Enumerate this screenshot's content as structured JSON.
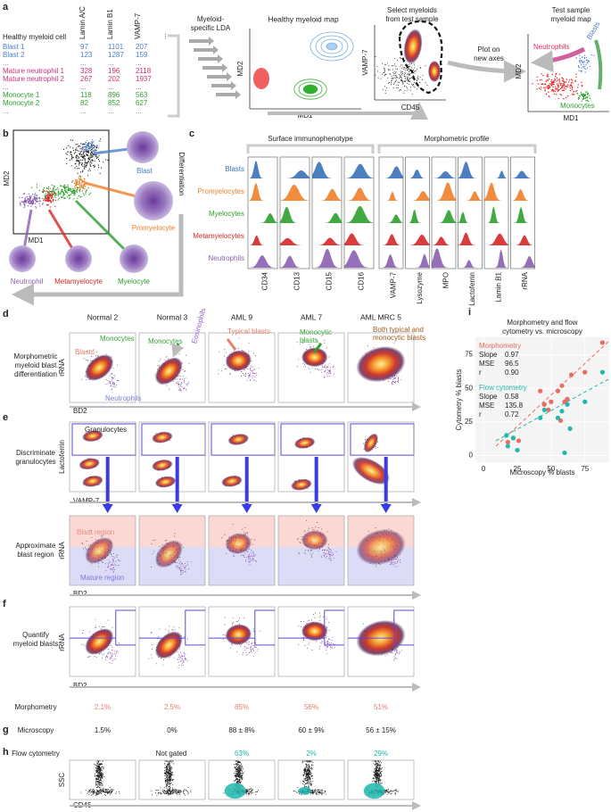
{
  "figure": {
    "a": {
      "label": "a",
      "header": "Healthy myeloid cell",
      "columns": [
        "Lamin A/C",
        "Lamin B1",
        "VAMP-7",
        "..."
      ],
      "rows": [
        {
          "cells": [
            "Blast 1",
            "97",
            "1101",
            "207"
          ],
          "color": "#4a80c8"
        },
        {
          "cells": [
            "Blast 2",
            "123",
            "1287",
            "159"
          ],
          "color": "#4a80c8"
        },
        {
          "cells": [
            "...",
            "...",
            "...",
            "..."
          ],
          "color": "#4a80c8"
        },
        {
          "cells": [
            "Mature neutrophil 1",
            "328",
            "196",
            "2118"
          ],
          "color": "#d0307a"
        },
        {
          "cells": [
            "Mature neutrophil 2",
            "267",
            "202",
            "1937"
          ],
          "color": "#d0307a"
        },
        {
          "cells": [
            "...",
            "...",
            "...",
            "..."
          ],
          "color": "#d0307a"
        },
        {
          "cells": [
            "Monocyte 1",
            "118",
            "896",
            "563"
          ],
          "color": "#2ea02e"
        },
        {
          "cells": [
            "Monocyte 2",
            "82",
            "852",
            "627"
          ],
          "color": "#2ea02e"
        },
        {
          "cells": [
            "...",
            "...",
            "...",
            "..."
          ],
          "color": "#2ea02e"
        }
      ],
      "lda": [
        "Myeloid-",
        "specific LDA"
      ],
      "healthy_title": "Healthy myeloid map",
      "healthy_y": "MD2",
      "healthy_x": "MD1",
      "select_title": [
        "Select myeloids",
        "from test sample"
      ],
      "select_y": "VAMP-7",
      "select_x": "CD45",
      "plot_new": [
        "Plot on",
        "new axes"
      ],
      "test_title": [
        "Test sample",
        "myeloid map"
      ],
      "test_y": "MD2",
      "test_x": "MD1",
      "neutrophils": "Neutrophils",
      "blasts": "Blasts",
      "monocytes": "Monocytes"
    },
    "b": {
      "label": "b",
      "y": "MD2",
      "x": "MD1",
      "axis": "Differentiation",
      "cells": [
        {
          "name": "Blast",
          "color": "#4a80c8"
        },
        {
          "name": "Promyelocyte",
          "color": "#f07f2a"
        },
        {
          "name": "Neutrophil",
          "color": "#8a5fb0"
        },
        {
          "name": "Metamyelocyte",
          "color": "#d62728"
        },
        {
          "name": "Myelocyte",
          "color": "#2ea02e"
        }
      ]
    },
    "c": {
      "label": "c",
      "groups": [
        "Surface immunophenotype",
        "Morphometric profile"
      ],
      "rows": [
        {
          "name": "Blasts",
          "color": "#3a70b8"
        },
        {
          "name": "Promyelocytes",
          "color": "#f07f2a"
        },
        {
          "name": "Myelocytes",
          "color": "#2ea02e"
        },
        {
          "name": "Metamyelocytes",
          "color": "#d62728"
        },
        {
          "name": "Neutrophils",
          "color": "#8a5fb0"
        }
      ],
      "columns": [
        "CD34",
        "CD13",
        "CD15",
        "CD16",
        "VAMP-7",
        "Lysozyme",
        "MPO",
        "Lactoferrin",
        "Lamin B1",
        "rRNA"
      ]
    },
    "samples": [
      "Normal 2",
      "Normal 3",
      "AML 9",
      "AML 7",
      "AML MRC 5"
    ],
    "d": {
      "label": "d",
      "row": [
        "Morphometric",
        "myeloid blast",
        "differentiation"
      ],
      "y": "rRNA",
      "x": "BD2",
      "annotations": [
        {
          "text": [
            "Blasts"
          ],
          "color": "#e8806a"
        },
        {
          "text": [
            "Monocytes"
          ],
          "color": "#3aa43a"
        },
        {
          "text": [
            "Neutrophils"
          ],
          "color": "#7a7ad8"
        },
        {
          "text": [
            "Monocytes"
          ],
          "color": "#3aa43a"
        },
        {
          "text": [
            "Eosinophils"
          ],
          "color": "#9b5fd8"
        },
        {
          "text": [
            "Typical blasts"
          ],
          "color": "#e8806a"
        },
        {
          "text": [
            "Monocytic",
            "blasts"
          ],
          "color": "#3aa43a"
        },
        {
          "text": [
            "Both typical and",
            "monocytic blasts"
          ],
          "color": "#a05a20"
        }
      ]
    },
    "e": {
      "label": "e",
      "row": [
        "Discriminate",
        "granulocytes"
      ],
      "y": "Lactoferrin",
      "x": "VAMP-7",
      "gate": "Granulocytes"
    },
    "approx": {
      "row": [
        "Approximate",
        "blast region"
      ],
      "y": "rRNA",
      "x": "BD2",
      "blast": "Blast region",
      "mature": "Mature region"
    },
    "f": {
      "label": "f",
      "row": [
        "Quantify",
        "myeloid blasts"
      ],
      "y": "rRNA",
      "x": "BD2"
    },
    "morphometry": {
      "name": "Morphometry",
      "values": [
        "2.1%",
        "2.5%",
        "85%",
        "56%",
        "51%"
      ],
      "color": "#e8806a"
    },
    "g": {
      "label": "g",
      "name": "Microscopy",
      "values": [
        "1.5%",
        "0%",
        "88 ± 8%",
        "60 ± 9%",
        "56 ± 15%"
      ]
    },
    "h": {
      "label": "h",
      "name": "Flow cytometry",
      "not_gated": "Not gated",
      "values": [
        "63%",
        "2%",
        "29%"
      ],
      "color": "#20b8b0",
      "y": "SSC",
      "x": "CD45"
    },
    "i_label": "i"
  },
  "chart_data": {
    "type": "scatter",
    "title": [
      "Morphometry and flow",
      "cytometry vs. microscopy"
    ],
    "xlabel": "Microscopy % blasts",
    "ylabel": "Cytometry % blasts",
    "xlim": [
      -6,
      93
    ],
    "ylim": [
      -5,
      88
    ],
    "xticks": [
      0,
      25,
      50,
      75
    ],
    "yticks": [
      0,
      25,
      50,
      75
    ],
    "grid": true,
    "series": [
      {
        "name": "Morphometry",
        "color": "#ec6a5e",
        "x": [
          18,
          22,
          26,
          42,
          45,
          48,
          50,
          55,
          57,
          58,
          60,
          62,
          65,
          75,
          88
        ],
        "values": [
          10,
          13,
          11,
          48,
          38,
          34,
          40,
          48,
          26,
          52,
          40,
          42,
          60,
          62,
          84
        ],
        "stats": [
          [
            "Slope",
            "0.97"
          ],
          [
            "MSE",
            "96.5"
          ],
          [
            "r",
            "0.90"
          ]
        ]
      },
      {
        "name": "Flow cytometry",
        "color": "#20b8b0",
        "x": [
          17,
          18,
          22,
          25,
          42,
          45,
          55,
          58,
          60,
          62,
          64,
          75,
          88
        ],
        "values": [
          15,
          7,
          13,
          4,
          28,
          34,
          28,
          33,
          2,
          38,
          20,
          40,
          62
        ],
        "stats": [
          [
            "Slope",
            "0.58"
          ],
          [
            "MSE",
            "135.8"
          ],
          [
            "r",
            "0.72"
          ]
        ]
      }
    ]
  }
}
